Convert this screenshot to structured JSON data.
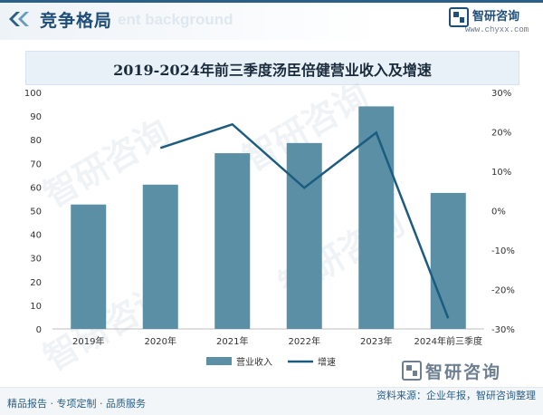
{
  "header": {
    "title": "竞争格局",
    "ghost_text": "ent background",
    "brand_name": "智研咨询",
    "brand_url": "www.chyxx.com"
  },
  "colors": {
    "bar": "#5a8fa6",
    "line": "#1c5d7f",
    "accent": "#1f4e79"
  },
  "chart_data": {
    "type": "bar",
    "title": "2019-2024年前三季度汤臣倍健营业收入及增速",
    "categories": [
      "2019年",
      "2020年",
      "2021年",
      "2022年",
      "2023年",
      "2024年前三季度"
    ],
    "series": [
      {
        "name": "营业收入",
        "type": "bar",
        "axis": "left",
        "values": [
          52.6,
          61.0,
          74.3,
          78.6,
          94.1,
          57.5
        ]
      },
      {
        "name": "增速",
        "type": "line",
        "axis": "right",
        "values": [
          null,
          15.9,
          21.9,
          5.8,
          19.8,
          -27.3
        ]
      }
    ],
    "y_left": {
      "min": 0,
      "max": 100,
      "ticks": [
        0,
        10,
        20,
        30,
        40,
        50,
        60,
        70,
        80,
        90,
        100
      ]
    },
    "y_right": {
      "min": -30,
      "max": 30,
      "ticks": [
        "30%",
        "20%",
        "10%",
        "0%",
        "-10%",
        "-20%",
        "-30%"
      ],
      "tick_values": [
        30,
        20,
        10,
        0,
        -10,
        -20,
        -30
      ]
    },
    "legend_position": "bottom"
  },
  "watermark": "智研咨询",
  "footer": {
    "left": "精品报告 · 专项定制 · 品质服务",
    "source": "资料来源：企业年报，智研咨询整理",
    "big_logo": "智研咨询"
  }
}
